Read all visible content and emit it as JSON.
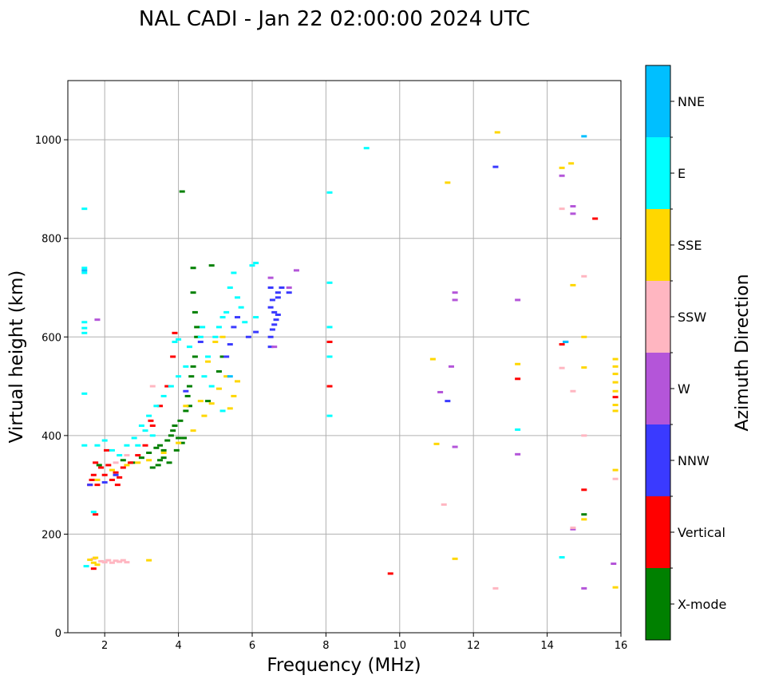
{
  "chart_data": {
    "type": "scatter",
    "title": "NAL CADI - Jan 22 02:00:00 2024 UTC",
    "xlabel": "Frequency (MHz)",
    "ylabel": "Virtual height (km)",
    "xlim": [
      1,
      16
    ],
    "ylim": [
      0,
      1120
    ],
    "xticks": [
      2,
      4,
      6,
      8,
      10,
      12,
      14,
      16
    ],
    "yticks": [
      0,
      200,
      400,
      600,
      800,
      1000
    ],
    "grid": true,
    "colorbar": {
      "label": "Azimuth Direction",
      "categories": [
        "X-mode",
        "Vertical",
        "NNW",
        "W",
        "SSW",
        "SSE",
        "E",
        "NNE"
      ],
      "colors": [
        "#008000",
        "#ff0000",
        "#3a3aff",
        "#b455d9",
        "#ffb6c1",
        "#ffd700",
        "#00ffff",
        "#00bfff"
      ]
    },
    "series": [
      {
        "name": "X-mode",
        "points": [
          [
            1.85,
            340
          ],
          [
            2.5,
            350
          ],
          [
            2.75,
            345
          ],
          [
            3.0,
            355
          ],
          [
            3.2,
            365
          ],
          [
            3.4,
            375
          ],
          [
            3.5,
            380
          ],
          [
            3.6,
            370
          ],
          [
            3.7,
            390
          ],
          [
            3.8,
            400
          ],
          [
            3.85,
            410
          ],
          [
            3.9,
            420
          ],
          [
            4.0,
            395
          ],
          [
            4.05,
            430
          ],
          [
            4.1,
            385
          ],
          [
            4.2,
            450
          ],
          [
            4.25,
            480
          ],
          [
            4.3,
            500
          ],
          [
            4.35,
            520
          ],
          [
            4.4,
            540
          ],
          [
            4.45,
            560
          ],
          [
            4.5,
            600
          ],
          [
            4.45,
            650
          ],
          [
            4.4,
            690
          ],
          [
            4.4,
            740
          ],
          [
            4.9,
            745
          ],
          [
            4.1,
            895
          ],
          [
            3.5,
            350
          ],
          [
            3.3,
            335
          ],
          [
            3.6,
            355
          ],
          [
            4.3,
            460
          ],
          [
            4.5,
            620
          ],
          [
            5.1,
            530
          ],
          [
            5.2,
            560
          ],
          [
            4.8,
            470
          ],
          [
            3.45,
            340
          ],
          [
            3.75,
            345
          ],
          [
            4.15,
            395
          ],
          [
            3.95,
            370
          ],
          [
            15.0,
            240
          ]
        ]
      },
      {
        "name": "Vertical",
        "points": [
          [
            1.6,
            300
          ],
          [
            1.65,
            310
          ],
          [
            1.7,
            320
          ],
          [
            1.75,
            345
          ],
          [
            1.8,
            300
          ],
          [
            1.9,
            335
          ],
          [
            2.0,
            320
          ],
          [
            2.1,
            340
          ],
          [
            2.2,
            310
          ],
          [
            2.3,
            325
          ],
          [
            2.4,
            315
          ],
          [
            2.5,
            335
          ],
          [
            2.7,
            345
          ],
          [
            2.9,
            360
          ],
          [
            3.1,
            380
          ],
          [
            3.3,
            420
          ],
          [
            3.5,
            460
          ],
          [
            3.7,
            500
          ],
          [
            3.85,
            560
          ],
          [
            3.9,
            608
          ],
          [
            1.7,
            130
          ],
          [
            1.75,
            240
          ],
          [
            8.1,
            590
          ],
          [
            8.1,
            500
          ],
          [
            9.75,
            120
          ],
          [
            13.2,
            515
          ],
          [
            14.4,
            585
          ],
          [
            15.0,
            290
          ],
          [
            15.3,
            840
          ],
          [
            15.85,
            478
          ],
          [
            2.05,
            370
          ],
          [
            2.35,
            300
          ],
          [
            3.25,
            430
          ]
        ]
      },
      {
        "name": "NNW",
        "points": [
          [
            1.6,
            300
          ],
          [
            1.8,
            310
          ],
          [
            2.0,
            305
          ],
          [
            2.3,
            320
          ],
          [
            4.2,
            490
          ],
          [
            4.6,
            590
          ],
          [
            5.4,
            585
          ],
          [
            5.5,
            620
          ],
          [
            5.6,
            640
          ],
          [
            5.3,
            560
          ],
          [
            5.9,
            600
          ],
          [
            6.1,
            610
          ],
          [
            6.5,
            580
          ],
          [
            6.5,
            600
          ],
          [
            6.55,
            615
          ],
          [
            6.6,
            625
          ],
          [
            6.65,
            635
          ],
          [
            6.7,
            645
          ],
          [
            6.6,
            650
          ],
          [
            6.5,
            660
          ],
          [
            6.55,
            675
          ],
          [
            6.7,
            680
          ],
          [
            6.7,
            690
          ],
          [
            6.8,
            700
          ],
          [
            6.5,
            700
          ],
          [
            7.0,
            690
          ],
          [
            12.6,
            945
          ],
          [
            11.3,
            470
          ],
          [
            14.5,
            590
          ]
        ]
      },
      {
        "name": "W",
        "points": [
          [
            1.8,
            635
          ],
          [
            6.6,
            580
          ],
          [
            6.5,
            720
          ],
          [
            7.0,
            700
          ],
          [
            7.2,
            735
          ],
          [
            11.1,
            488
          ],
          [
            11.4,
            540
          ],
          [
            11.5,
            377
          ],
          [
            11.5,
            675
          ],
          [
            11.5,
            690
          ],
          [
            13.2,
            675
          ],
          [
            13.2,
            362
          ],
          [
            14.4,
            927
          ],
          [
            14.7,
            865
          ],
          [
            14.7,
            850
          ],
          [
            14.7,
            210
          ],
          [
            15.0,
            90
          ],
          [
            15.8,
            140
          ]
        ]
      },
      {
        "name": "SSW",
        "points": [
          [
            1.9,
            145
          ],
          [
            2.0,
            143
          ],
          [
            2.1,
            147
          ],
          [
            2.2,
            142
          ],
          [
            2.3,
            146
          ],
          [
            2.4,
            144
          ],
          [
            2.5,
            147
          ],
          [
            2.6,
            143
          ],
          [
            1.7,
            150
          ],
          [
            11.2,
            260
          ],
          [
            12.6,
            90
          ],
          [
            14.4,
            860
          ],
          [
            14.4,
            537
          ],
          [
            14.7,
            213
          ],
          [
            14.7,
            490
          ],
          [
            15.0,
            723
          ],
          [
            15.0,
            400
          ],
          [
            15.85,
            312
          ],
          [
            2.3,
            345
          ],
          [
            2.6,
            360
          ],
          [
            3.3,
            500
          ]
        ]
      },
      {
        "name": "SSE",
        "points": [
          [
            1.6,
            148
          ],
          [
            1.7,
            142
          ],
          [
            1.75,
            152
          ],
          [
            1.8,
            138
          ],
          [
            3.2,
            147
          ],
          [
            1.8,
            310
          ],
          [
            2.2,
            330
          ],
          [
            2.6,
            340
          ],
          [
            2.9,
            345
          ],
          [
            3.2,
            350
          ],
          [
            3.6,
            365
          ],
          [
            4.0,
            385
          ],
          [
            4.4,
            410
          ],
          [
            4.7,
            440
          ],
          [
            4.9,
            465
          ],
          [
            5.1,
            495
          ],
          [
            5.3,
            520
          ],
          [
            5.5,
            480
          ],
          [
            5.4,
            455
          ],
          [
            5.6,
            510
          ],
          [
            5.0,
            590
          ],
          [
            5.2,
            600
          ],
          [
            4.8,
            550
          ],
          [
            10.9,
            555
          ],
          [
            11.0,
            383
          ],
          [
            11.3,
            913
          ],
          [
            11.5,
            150
          ],
          [
            12.65,
            1015
          ],
          [
            13.2,
            545
          ],
          [
            14.4,
            943
          ],
          [
            14.65,
            952
          ],
          [
            14.7,
            705
          ],
          [
            15.0,
            600
          ],
          [
            15.0,
            538
          ],
          [
            15.0,
            230
          ],
          [
            15.85,
            555
          ],
          [
            15.85,
            540
          ],
          [
            15.85,
            525
          ],
          [
            15.85,
            508
          ],
          [
            15.85,
            490
          ],
          [
            15.85,
            462
          ],
          [
            15.85,
            450
          ],
          [
            15.85,
            330
          ],
          [
            15.85,
            92
          ],
          [
            4.2,
            460
          ],
          [
            4.6,
            470
          ]
        ]
      },
      {
        "name": "E",
        "points": [
          [
            1.45,
            860
          ],
          [
            1.45,
            740
          ],
          [
            1.45,
            730
          ],
          [
            1.45,
            630
          ],
          [
            1.45,
            618
          ],
          [
            1.45,
            608
          ],
          [
            1.45,
            485
          ],
          [
            1.45,
            380
          ],
          [
            1.5,
            135
          ],
          [
            1.7,
            245
          ],
          [
            1.8,
            380
          ],
          [
            2.0,
            390
          ],
          [
            2.2,
            370
          ],
          [
            2.4,
            360
          ],
          [
            2.6,
            380
          ],
          [
            2.8,
            395
          ],
          [
            3.0,
            420
          ],
          [
            3.2,
            440
          ],
          [
            3.4,
            460
          ],
          [
            3.6,
            480
          ],
          [
            3.8,
            500
          ],
          [
            4.0,
            520
          ],
          [
            4.2,
            540
          ],
          [
            4.3,
            580
          ],
          [
            4.0,
            595
          ],
          [
            3.9,
            590
          ],
          [
            4.7,
            520
          ],
          [
            4.8,
            560
          ],
          [
            5.0,
            600
          ],
          [
            5.1,
            620
          ],
          [
            5.3,
            650
          ],
          [
            5.4,
            700
          ],
          [
            5.5,
            730
          ],
          [
            5.6,
            680
          ],
          [
            5.7,
            660
          ],
          [
            6.1,
            640
          ],
          [
            6.1,
            750
          ],
          [
            6.0,
            745
          ],
          [
            5.8,
            630
          ],
          [
            4.9,
            500
          ],
          [
            5.2,
            450
          ],
          [
            4.6,
            600
          ],
          [
            4.65,
            620
          ],
          [
            5.2,
            640
          ],
          [
            8.1,
            893
          ],
          [
            8.1,
            710
          ],
          [
            8.1,
            620
          ],
          [
            8.1,
            560
          ],
          [
            8.1,
            440
          ],
          [
            9.1,
            983
          ],
          [
            13.2,
            412
          ],
          [
            14.4,
            153
          ],
          [
            2.9,
            380
          ],
          [
            3.3,
            400
          ],
          [
            3.1,
            410
          ]
        ]
      },
      {
        "name": "NNE",
        "points": [
          [
            1.45,
            735
          ],
          [
            15.0,
            1007
          ],
          [
            14.5,
            590
          ],
          [
            5.4,
            520
          ]
        ]
      }
    ]
  }
}
